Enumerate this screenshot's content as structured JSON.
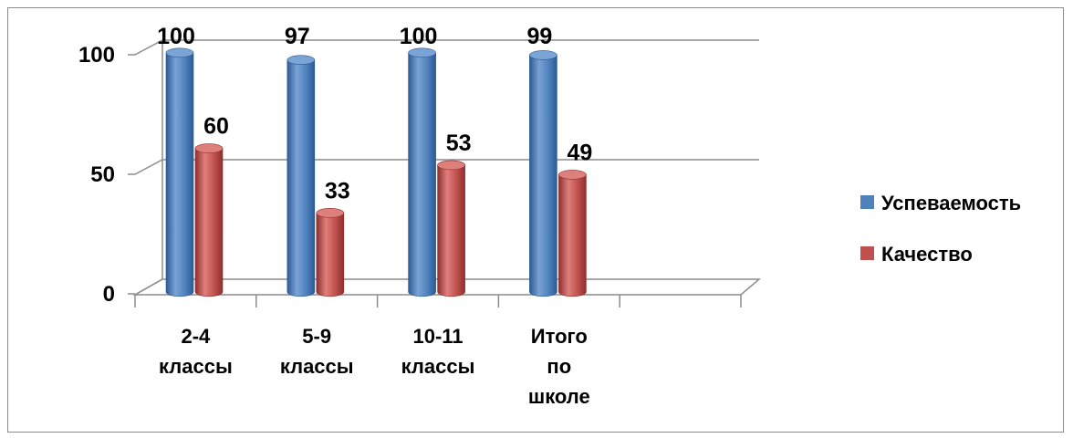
{
  "chart_data": {
    "type": "bar",
    "categories": [
      [
        "2-4",
        "классы"
      ],
      [
        "5-9",
        "классы"
      ],
      [
        "10-11",
        "классы"
      ],
      [
        "Итого",
        "по",
        "школе"
      ]
    ],
    "series": [
      {
        "name": "Успеваемость",
        "values": [
          100,
          97,
          100,
          99
        ],
        "color": "#4f81bd",
        "dark": "#2c5a93",
        "light": "#7aa3d6"
      },
      {
        "name": "Качество",
        "values": [
          60,
          33,
          53,
          49
        ],
        "color": "#c0504d",
        "dark": "#8e2f2d",
        "light": "#df7f7c"
      }
    ],
    "yticks": [
      0,
      50,
      100
    ],
    "ylim": [
      0,
      100
    ],
    "grid": true,
    "legend": "right",
    "style": "3d-cylinder"
  }
}
